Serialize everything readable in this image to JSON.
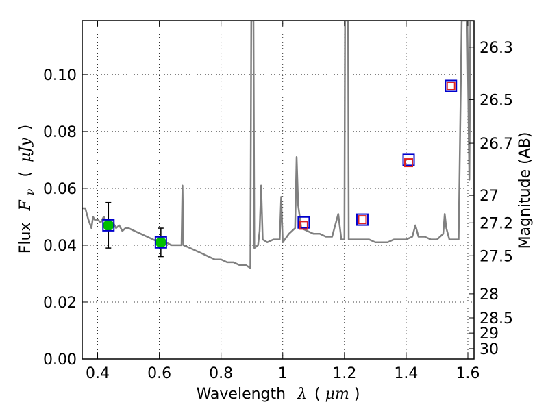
{
  "chart_data": {
    "type": "scatter",
    "title": "",
    "xlabel": {
      "prefix": "Wavelength",
      "symbol": "λ",
      "unit_open": "(",
      "unit": "μm",
      "unit_close": ")"
    },
    "ylabel": {
      "prefix": "Flux",
      "symbol": "F",
      "subscript": "ν",
      "unit_open": "(",
      "unit": "μJy",
      "unit_close": ")"
    },
    "y2label": "Magnitude (AB)",
    "xlim": [
      0.35,
      1.62
    ],
    "ylim": [
      0.0,
      0.119
    ],
    "grid": true,
    "grid_style": "dotted",
    "x_ticks": [
      {
        "value": 0.4,
        "label": "0.4"
      },
      {
        "value": 0.6,
        "label": "0.6"
      },
      {
        "value": 0.8,
        "label": "0.8"
      },
      {
        "value": 1.0,
        "label": "1"
      },
      {
        "value": 1.2,
        "label": "1.2"
      },
      {
        "value": 1.4,
        "label": "1.4"
      },
      {
        "value": 1.6,
        "label": "1.6"
      }
    ],
    "y_ticks": [
      {
        "value": 0.0,
        "label": "0.00"
      },
      {
        "value": 0.02,
        "label": "0.02"
      },
      {
        "value": 0.04,
        "label": "0.04"
      },
      {
        "value": 0.06,
        "label": "0.06"
      },
      {
        "value": 0.08,
        "label": "0.08"
      },
      {
        "value": 0.1,
        "label": "0.10"
      }
    ],
    "y2_ticks": [
      {
        "mag": 26.3,
        "label": "26.3"
      },
      {
        "mag": 26.5,
        "label": "26.5"
      },
      {
        "mag": 26.7,
        "label": "26.7"
      },
      {
        "mag": 27.0,
        "label": "27"
      },
      {
        "mag": 27.2,
        "label": "27.2"
      },
      {
        "mag": 27.5,
        "label": "27.5"
      },
      {
        "mag": 28.0,
        "label": "28"
      },
      {
        "mag": 28.5,
        "label": "28.5"
      },
      {
        "mag": 29.0,
        "label": "29"
      },
      {
        "mag": 30.0,
        "label": "30"
      }
    ],
    "series": [
      {
        "type": "line",
        "color": "#808080",
        "points": [
          [
            0.35,
            0.053
          ],
          [
            0.36,
            0.053
          ],
          [
            0.37,
            0.049
          ],
          [
            0.38,
            0.046
          ],
          [
            0.385,
            0.05
          ],
          [
            0.39,
            0.049
          ],
          [
            0.4,
            0.049
          ],
          [
            0.41,
            0.048
          ],
          [
            0.42,
            0.05
          ],
          [
            0.43,
            0.048
          ],
          [
            0.44,
            0.047
          ],
          [
            0.45,
            0.048
          ],
          [
            0.46,
            0.046
          ],
          [
            0.47,
            0.047
          ],
          [
            0.48,
            0.045
          ],
          [
            0.49,
            0.046
          ],
          [
            0.5,
            0.046
          ],
          [
            0.52,
            0.045
          ],
          [
            0.54,
            0.044
          ],
          [
            0.56,
            0.043
          ],
          [
            0.58,
            0.042
          ],
          [
            0.6,
            0.041
          ],
          [
            0.62,
            0.041
          ],
          [
            0.64,
            0.04
          ],
          [
            0.66,
            0.04
          ],
          [
            0.672,
            0.04
          ],
          [
            0.675,
            0.061
          ],
          [
            0.678,
            0.04
          ],
          [
            0.7,
            0.039
          ],
          [
            0.72,
            0.038
          ],
          [
            0.74,
            0.037
          ],
          [
            0.76,
            0.036
          ],
          [
            0.78,
            0.035
          ],
          [
            0.8,
            0.035
          ],
          [
            0.82,
            0.034
          ],
          [
            0.84,
            0.034
          ],
          [
            0.86,
            0.033
          ],
          [
            0.88,
            0.033
          ],
          [
            0.895,
            0.032
          ],
          [
            0.898,
            0.119
          ],
          [
            0.905,
            0.119
          ],
          [
            0.908,
            0.039
          ],
          [
            0.92,
            0.04
          ],
          [
            0.925,
            0.045
          ],
          [
            0.93,
            0.061
          ],
          [
            0.935,
            0.042
          ],
          [
            0.95,
            0.041
          ],
          [
            0.97,
            0.042
          ],
          [
            0.99,
            0.042
          ],
          [
            0.995,
            0.057
          ],
          [
            1.0,
            0.041
          ],
          [
            1.02,
            0.044
          ],
          [
            1.04,
            0.046
          ],
          [
            1.045,
            0.071
          ],
          [
            1.05,
            0.054
          ],
          [
            1.06,
            0.046
          ],
          [
            1.08,
            0.045
          ],
          [
            1.1,
            0.044
          ],
          [
            1.12,
            0.044
          ],
          [
            1.14,
            0.043
          ],
          [
            1.16,
            0.043
          ],
          [
            1.18,
            0.051
          ],
          [
            1.19,
            0.042
          ],
          [
            1.2,
            0.042
          ],
          [
            1.202,
            0.119
          ],
          [
            1.212,
            0.119
          ],
          [
            1.214,
            0.042
          ],
          [
            1.24,
            0.042
          ],
          [
            1.26,
            0.042
          ],
          [
            1.28,
            0.042
          ],
          [
            1.3,
            0.041
          ],
          [
            1.32,
            0.041
          ],
          [
            1.34,
            0.041
          ],
          [
            1.36,
            0.042
          ],
          [
            1.38,
            0.042
          ],
          [
            1.4,
            0.042
          ],
          [
            1.42,
            0.043
          ],
          [
            1.43,
            0.047
          ],
          [
            1.44,
            0.043
          ],
          [
            1.46,
            0.043
          ],
          [
            1.48,
            0.042
          ],
          [
            1.5,
            0.042
          ],
          [
            1.52,
            0.044
          ],
          [
            1.525,
            0.051
          ],
          [
            1.53,
            0.046
          ],
          [
            1.54,
            0.042
          ],
          [
            1.56,
            0.042
          ],
          [
            1.57,
            0.042
          ],
          [
            1.58,
            0.119
          ],
          [
            1.59,
            0.119
          ],
          [
            1.598,
            0.119
          ],
          [
            1.605,
            0.063
          ],
          [
            1.608,
            0.119
          ],
          [
            1.62,
            0.119
          ]
        ]
      },
      {
        "type": "scatter",
        "marker": "circle",
        "color": "#00c000",
        "points": [
          {
            "x": 0.435,
            "y": 0.047,
            "yerr": 0.008
          },
          {
            "x": 0.605,
            "y": 0.041,
            "yerr": 0.005
          }
        ]
      },
      {
        "type": "scatter",
        "marker": "square-open",
        "color": "#0000cc",
        "points": [
          {
            "x": 0.435,
            "y": 0.047
          },
          {
            "x": 0.605,
            "y": 0.041
          },
          {
            "x": 1.068,
            "y": 0.048
          },
          {
            "x": 1.258,
            "y": 0.049
          },
          {
            "x": 1.408,
            "y": 0.07
          },
          {
            "x": 1.545,
            "y": 0.096
          }
        ]
      },
      {
        "type": "scatter",
        "marker": "square-open",
        "color": "#dd2222",
        "points": [
          {
            "x": 1.068,
            "y": 0.047
          },
          {
            "x": 1.258,
            "y": 0.049
          },
          {
            "x": 1.408,
            "y": 0.069
          },
          {
            "x": 1.545,
            "y": 0.096
          }
        ]
      }
    ]
  }
}
